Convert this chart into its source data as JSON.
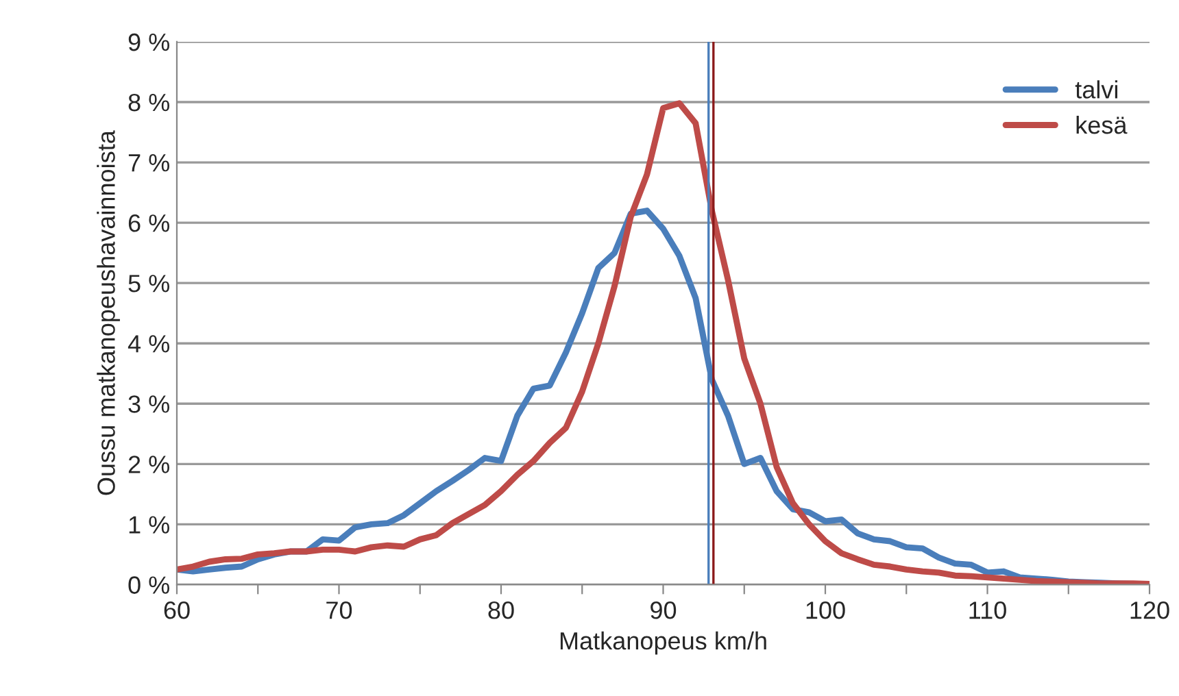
{
  "chart_data": {
    "type": "line",
    "xlabel": "Matkanopeus km/h",
    "ylabel": "Oussu matkanopeushavainnoista",
    "x": [
      60,
      61,
      62,
      63,
      64,
      65,
      66,
      67,
      68,
      69,
      70,
      71,
      72,
      73,
      74,
      75,
      76,
      77,
      78,
      79,
      80,
      81,
      82,
      83,
      84,
      85,
      86,
      87,
      88,
      89,
      90,
      91,
      92,
      93,
      94,
      95,
      96,
      97,
      98,
      99,
      100,
      101,
      102,
      103,
      104,
      105,
      106,
      107,
      108,
      109,
      110,
      111,
      112,
      113,
      114,
      115,
      116,
      117,
      118,
      119,
      120
    ],
    "series": [
      {
        "name": "talvi",
        "color": "#4a7ebb",
        "values": [
          0.25,
          0.22,
          0.25,
          0.28,
          0.3,
          0.42,
          0.5,
          0.55,
          0.55,
          0.75,
          0.73,
          0.95,
          1.0,
          1.02,
          1.15,
          1.35,
          1.55,
          1.72,
          1.9,
          2.1,
          2.05,
          2.8,
          3.25,
          3.3,
          3.85,
          4.5,
          5.25,
          5.5,
          6.15,
          6.2,
          5.9,
          5.45,
          4.75,
          3.4,
          2.8,
          2.0,
          2.1,
          1.55,
          1.25,
          1.2,
          1.05,
          1.08,
          0.85,
          0.75,
          0.72,
          0.62,
          0.6,
          0.45,
          0.35,
          0.33,
          0.2,
          0.22,
          0.12,
          0.1,
          0.08,
          0.05,
          0.04,
          0.03,
          0.02,
          0.01,
          0.01
        ]
      },
      {
        "name": "kesä",
        "color": "#be4b48",
        "values": [
          0.25,
          0.3,
          0.38,
          0.42,
          0.43,
          0.5,
          0.52,
          0.55,
          0.55,
          0.58,
          0.58,
          0.55,
          0.62,
          0.65,
          0.63,
          0.75,
          0.82,
          1.02,
          1.17,
          1.32,
          1.55,
          1.82,
          2.05,
          2.35,
          2.6,
          3.2,
          4.0,
          4.95,
          6.1,
          6.8,
          7.9,
          7.98,
          7.65,
          6.2,
          5.05,
          3.75,
          3.0,
          1.95,
          1.35,
          1.0,
          0.72,
          0.52,
          0.42,
          0.33,
          0.3,
          0.25,
          0.22,
          0.2,
          0.15,
          0.14,
          0.12,
          0.1,
          0.08,
          0.06,
          0.05,
          0.04,
          0.03,
          0.02,
          0.02,
          0.02,
          0.01
        ]
      }
    ],
    "ref_lines": [
      {
        "axis": "x",
        "value": 92.8,
        "color": "#4a7ebb"
      },
      {
        "axis": "x",
        "value": 93.1,
        "color": "#8b1a1a"
      }
    ],
    "xlim": [
      60,
      120
    ],
    "xticks": [
      60,
      {
        "value": 65,
        "label": null
      },
      70,
      {
        "value": 75,
        "label": null
      },
      80,
      {
        "value": 85,
        "label": null
      },
      90,
      {
        "value": 95,
        "label": null
      },
      100,
      {
        "value": 105,
        "label": null
      },
      110,
      {
        "value": 115,
        "label": null
      },
      120
    ],
    "ylim": [
      0,
      9
    ],
    "yticks": [
      {
        "value": 0,
        "label": "0 %"
      },
      {
        "value": 1,
        "label": "1 %"
      },
      {
        "value": 2,
        "label": "2 %"
      },
      {
        "value": 3,
        "label": "3 %"
      },
      {
        "value": 4,
        "label": "4 %"
      },
      {
        "value": 5,
        "label": "5 %"
      },
      {
        "value": 6,
        "label": "6 %"
      },
      {
        "value": 7,
        "label": "7 %"
      },
      {
        "value": 8,
        "label": "8 %"
      },
      {
        "value": 9,
        "label": "9 %"
      }
    ],
    "grid": "y",
    "legend": "top right",
    "line_style": "solid",
    "marker": "none"
  }
}
